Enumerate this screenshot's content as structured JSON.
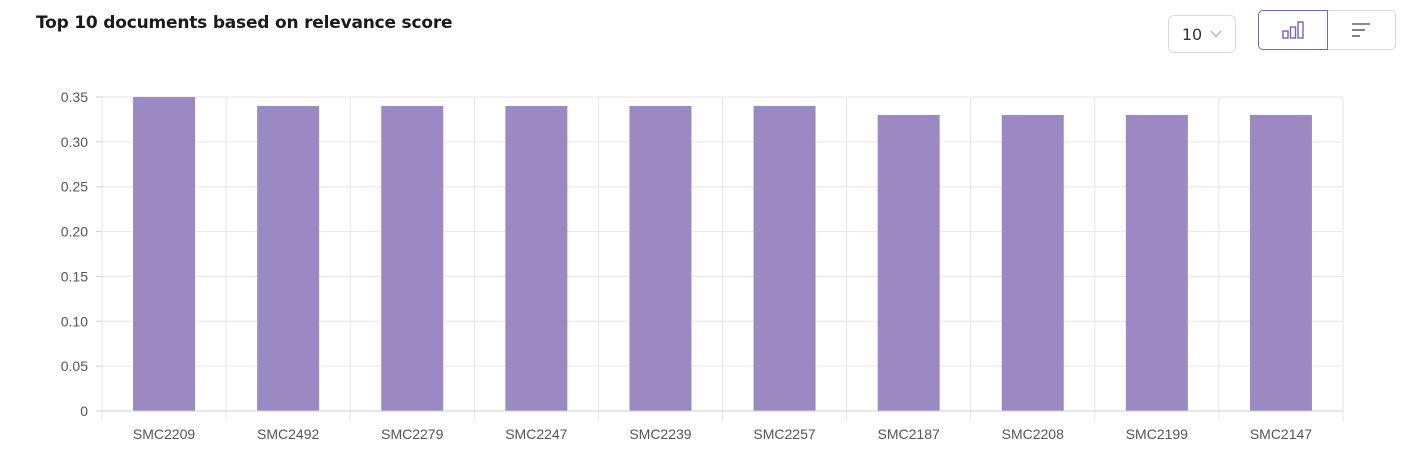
{
  "header": {
    "title": "Top 10 documents based on relevance score",
    "count_value": "10"
  },
  "icons": {
    "dropdown": "chevron-down-icon",
    "bar_view": "bar-chart-icon",
    "list_view": "horizontal-bars-icon"
  },
  "colors": {
    "bar": "#9b89c4",
    "accent": "#7b64b8",
    "grid": "#e6e6e6"
  },
  "chart_data": {
    "type": "bar",
    "categories": [
      "SMC2209",
      "SMC2492",
      "SMC2279",
      "SMC2247",
      "SMC2239",
      "SMC2257",
      "SMC2187",
      "SMC2208",
      "SMC2199",
      "SMC2147"
    ],
    "values": [
      0.35,
      0.34,
      0.34,
      0.34,
      0.34,
      0.34,
      0.33,
      0.33,
      0.33,
      0.33
    ],
    "yticks": [
      "0",
      "0.05",
      "0.10",
      "0.15",
      "0.20",
      "0.25",
      "0.30",
      "0.35"
    ],
    "ylim": [
      0,
      0.35
    ],
    "grid": true,
    "title": "Top 10 documents based on relevance score",
    "xlabel": "",
    "ylabel": ""
  }
}
